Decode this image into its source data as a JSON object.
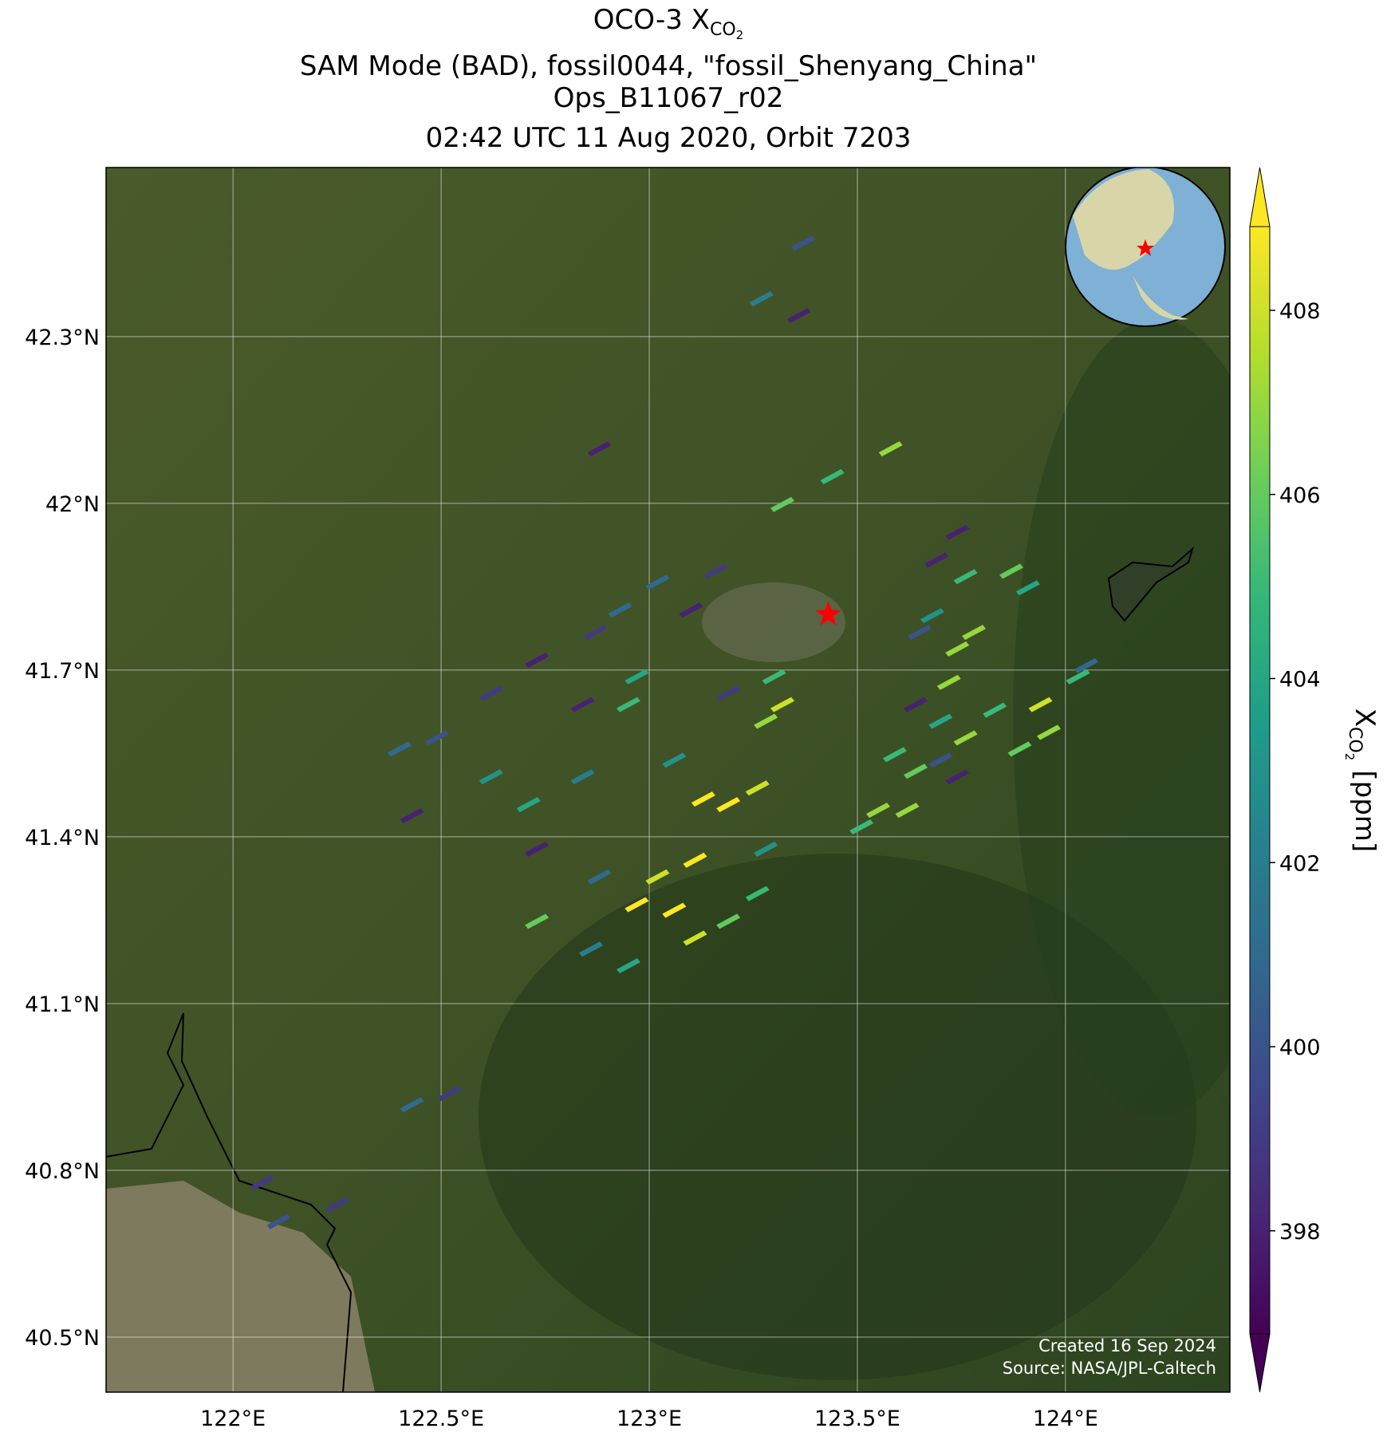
{
  "chart_data": {
    "type": "map",
    "title_line1": [
      "OCO-3 X",
      "CO",
      "2"
    ],
    "title_line2": "SAM Mode (BAD), fossil0044, \"fossil_Shenyang_China\"",
    "title_line3": "Ops_B11067_r02",
    "title_line4": "02:42 UTC 11 Aug 2020, Orbit 7203",
    "xlim": [
      121.695,
      124.395
    ],
    "ylim": [
      40.401,
      42.604
    ],
    "xticks": [
      {
        "value": 122,
        "label": "122°E"
      },
      {
        "value": 122.5,
        "label": "122.5°E"
      },
      {
        "value": 123,
        "label": "123°E"
      },
      {
        "value": 123.5,
        "label": "123.5°E"
      },
      {
        "value": 124,
        "label": "124°E"
      }
    ],
    "yticks": [
      {
        "value": 40.5,
        "label": "40.5°N"
      },
      {
        "value": 40.8,
        "label": "40.8°N"
      },
      {
        "value": 41.1,
        "label": "41.1°N"
      },
      {
        "value": 41.4,
        "label": "41.4°N"
      },
      {
        "value": 41.7,
        "label": "41.7°N"
      },
      {
        "value": 42,
        "label": "42°N"
      },
      {
        "value": 42.3,
        "label": "42.3°N"
      }
    ],
    "grid": true,
    "colorbar": {
      "label": [
        "X",
        "CO",
        "2",
        "[ppm]"
      ],
      "clim": [
        396.88,
        408.91
      ],
      "ticks": [
        398,
        400,
        402,
        404,
        406,
        408
      ],
      "colormap": [
        "#440154",
        "#482878",
        "#3e4989",
        "#31688e",
        "#26828e",
        "#1f9e89",
        "#35b779",
        "#6ece58",
        "#b5de2b",
        "#fde725"
      ]
    },
    "site": {
      "lon": 123.43,
      "lat": 41.8,
      "color": "#ff0000"
    },
    "soundings": {
      "lon": [
        123.27,
        123.36,
        122.88,
        123.58,
        123.44,
        123.32,
        123.74,
        123.69,
        123.16,
        123.02,
        123.1,
        122.93,
        122.87,
        123.76,
        123.87,
        123.91,
        123.78,
        123.68,
        123.65,
        123.3,
        123.32,
        123.28,
        123.19,
        122.97,
        122.95,
        122.84,
        122.73,
        122.62,
        122.49,
        122.4,
        122.62,
        122.71,
        122.84,
        123.06,
        123.13,
        123.19,
        123.26,
        123.11,
        123.02,
        123.06,
        122.97,
        123.11,
        123.19,
        123.26,
        123.28,
        122.88,
        122.95,
        122.86,
        122.73,
        122.43,
        122.73,
        123.51,
        123.55,
        123.62,
        123.64,
        123.59,
        123.7,
        123.72,
        123.74,
        123.76,
        123.83,
        123.94,
        123.96,
        124.03,
        124.05,
        123.89,
        123.74,
        123.7,
        123.64,
        122.52,
        122.43,
        122.07,
        122.11,
        122.25,
        123.37
      ],
      "lat": [
        42.37,
        42.34,
        42.1,
        42.1,
        42.05,
        42.0,
        41.95,
        41.9,
        41.88,
        41.86,
        41.81,
        41.81,
        41.77,
        41.87,
        41.88,
        41.85,
        41.77,
        41.8,
        41.77,
        41.69,
        41.64,
        41.61,
        41.66,
        41.69,
        41.64,
        41.64,
        41.72,
        41.66,
        41.58,
        41.56,
        41.51,
        41.46,
        41.51,
        41.54,
        41.47,
        41.46,
        41.49,
        41.36,
        41.33,
        41.27,
        41.28,
        41.22,
        41.25,
        41.3,
        41.38,
        41.33,
        41.17,
        41.2,
        41.25,
        41.44,
        41.38,
        41.42,
        41.45,
        41.45,
        41.52,
        41.55,
        41.61,
        41.68,
        41.74,
        41.58,
        41.63,
        41.64,
        41.59,
        41.69,
        41.71,
        41.56,
        41.51,
        41.54,
        41.64,
        40.94,
        40.92,
        40.78,
        40.71,
        40.74,
        42.47
      ],
      "xco2": [
        402,
        398,
        398,
        407,
        405,
        406,
        398,
        398,
        399,
        401,
        398,
        401,
        399,
        405,
        406,
        404,
        407,
        403,
        400,
        405,
        408,
        407,
        399,
        404,
        405,
        398,
        398,
        399,
        400,
        401,
        403,
        404,
        402,
        403,
        409,
        409,
        408,
        409,
        408,
        409,
        409,
        408,
        406,
        405,
        403,
        401,
        404,
        402,
        406,
        398,
        398,
        405,
        407,
        407,
        406,
        405,
        404,
        407,
        407,
        407,
        405,
        408,
        407,
        405,
        401,
        406,
        398,
        400,
        398,
        399,
        401,
        399,
        400,
        399,
        400
      ]
    },
    "notes": [
      "Created 16 Sep 2024",
      "Source: NASA/JPL-Caltech"
    ]
  }
}
